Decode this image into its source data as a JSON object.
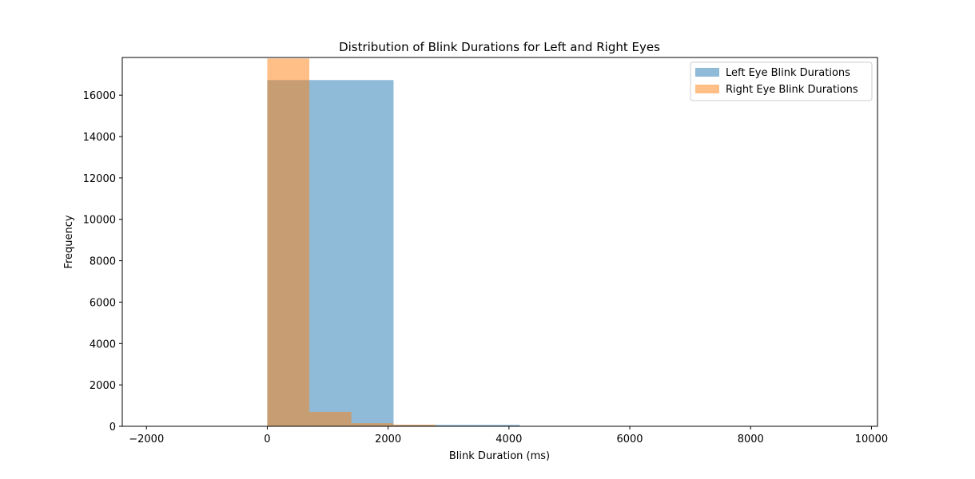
{
  "chart_data": {
    "type": "bar",
    "subtype": "histogram",
    "title": "Distribution of Blink Durations for Left and Right Eyes",
    "xlabel": "Blink Duration (ms)",
    "ylabel": "Frequency",
    "xlim": [
      -2400,
      10100
    ],
    "ylim": [
      0,
      17820
    ],
    "xticks": [
      -2000,
      0,
      2000,
      4000,
      6000,
      8000,
      10000
    ],
    "yticks": [
      0,
      2000,
      4000,
      6000,
      8000,
      10000,
      12000,
      14000,
      16000
    ],
    "grid": false,
    "legend_position": "top-right",
    "series": [
      {
        "name": "Left Eye Blink Durations",
        "color": "#1f77b4",
        "alpha": 0.5,
        "bins": [
          {
            "x0": 0,
            "x1": 2090,
            "count": 16730
          },
          {
            "x0": 2090,
            "x1": 4180,
            "count": 70
          }
        ]
      },
      {
        "name": "Right Eye Blink Durations",
        "color": "#ff7f0e",
        "alpha": 0.5,
        "bins": [
          {
            "x0": 0,
            "x1": 696,
            "count": 17770
          },
          {
            "x0": 696,
            "x1": 1392,
            "count": 700
          },
          {
            "x0": 1392,
            "x1": 2088,
            "count": 150
          },
          {
            "x0": 2088,
            "x1": 2784,
            "count": 80
          }
        ]
      }
    ]
  }
}
